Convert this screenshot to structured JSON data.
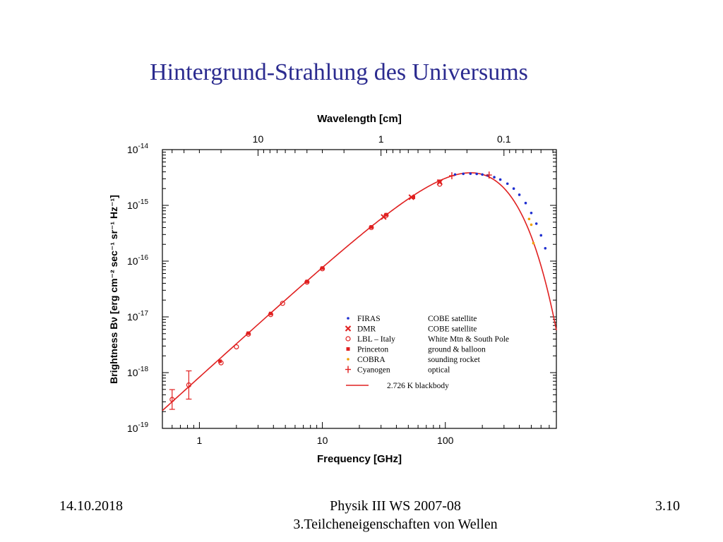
{
  "slide": {
    "title": "Hintergrund-Strahlung des Universums",
    "footer_date": "14.10.2018",
    "footer_course": "Physik III WS 2007-08",
    "footer_chapter": "3.Teilcheneigenschaften von Wellen",
    "footer_page": "3.10"
  },
  "chart_data": {
    "type": "scatter",
    "xlabel": "Frequency [GHz]",
    "ylabel": "Brightness Bν [erg cm⁻² sec⁻¹ sr⁻¹ Hz⁻¹]",
    "x2label": "Wavelength [cm]",
    "xscale": "log",
    "yscale": "log",
    "xlim": [
      0.5,
      800
    ],
    "ylim": [
      1e-19,
      1e-14
    ],
    "xticks": [
      {
        "value": 1,
        "label": "1"
      },
      {
        "value": 10,
        "label": "10"
      },
      {
        "value": 100,
        "label": "100"
      }
    ],
    "x2ticks": [
      {
        "value": 10,
        "label": "10"
      },
      {
        "value": 1,
        "label": "1"
      },
      {
        "value": 0.1,
        "label": "0.1"
      }
    ],
    "yticks": [
      {
        "value": 1e-14,
        "base": "10",
        "exp": "-14"
      },
      {
        "value": 1e-15,
        "base": "10",
        "exp": "-15"
      },
      {
        "value": 1e-16,
        "base": "10",
        "exp": "-16"
      },
      {
        "value": 1e-17,
        "base": "10",
        "exp": "-17"
      },
      {
        "value": 1e-18,
        "base": "10",
        "exp": "-18"
      },
      {
        "value": 1e-19,
        "base": "10",
        "exp": "-19"
      }
    ],
    "legend_position": "bottom-right",
    "series": [
      {
        "name": "FIRAS",
        "description": "COBE satellite",
        "marker": "dot",
        "color": "#1f2fd0",
        "x": [
          120,
          140,
          160,
          180,
          200,
          220,
          250,
          280,
          320,
          360,
          400,
          450,
          500,
          550,
          600,
          650
        ],
        "y": [
          3.58e-15,
          3.68e-15,
          3.7e-15,
          3.66e-15,
          3.58e-15,
          3.45e-15,
          3.2e-15,
          2.9e-15,
          2.45e-15,
          2e-15,
          1.55e-15,
          1.1e-15,
          7.3e-16,
          4.7e-16,
          2.9e-16,
          1.7e-16
        ]
      },
      {
        "name": "DMR",
        "description": "COBE satellite",
        "marker": "cross",
        "color": "#e02020",
        "x": [
          31.5,
          53,
          90
        ],
        "y": [
          6.2e-16,
          1.4e-15,
          2.6e-15
        ]
      },
      {
        "name": "LBL – Italy",
        "description": "White Mtn & South Pole",
        "marker": "circle",
        "color": "#e02020",
        "x": [
          0.6,
          0.82,
          1.5,
          2.0,
          2.5,
          3.8,
          4.75,
          7.5,
          10,
          25,
          33,
          90
        ],
        "y": [
          3.3e-19,
          6e-19,
          1.5e-18,
          2.9e-18,
          4.9e-18,
          1.1e-17,
          1.75e-17,
          4.2e-17,
          7.3e-17,
          4e-16,
          6.6e-16,
          2.4e-15
        ]
      },
      {
        "name": "Princeton",
        "description": "ground & balloon",
        "marker": "square",
        "color": "#e02020",
        "x": [
          1.47,
          2.5,
          3.8,
          7.5,
          10,
          25,
          33,
          55,
          90
        ],
        "y": [
          1.6e-18,
          5.1e-18,
          1.15e-17,
          4.3e-17,
          7.5e-17,
          4.1e-16,
          6.8e-16,
          1.4e-15,
          2.7e-15
        ]
      },
      {
        "name": "COBRA",
        "description": "sounding rocket",
        "marker": "dot",
        "color": "#f0a000",
        "x": [
          480,
          500,
          520
        ],
        "y": [
          5.7e-16,
          4.5e-16,
          2.1e-16
        ]
      },
      {
        "name": "Cyanogen",
        "description": "optical",
        "marker": "plus",
        "color": "#e02020",
        "x": [
          113,
          227
        ],
        "y": [
          3.4e-15,
          3.5e-15
        ]
      },
      {
        "name": "2.726 K blackbody",
        "description": "",
        "marker": "line",
        "color": "#e02020",
        "temperature_K": 2.726
      }
    ]
  }
}
